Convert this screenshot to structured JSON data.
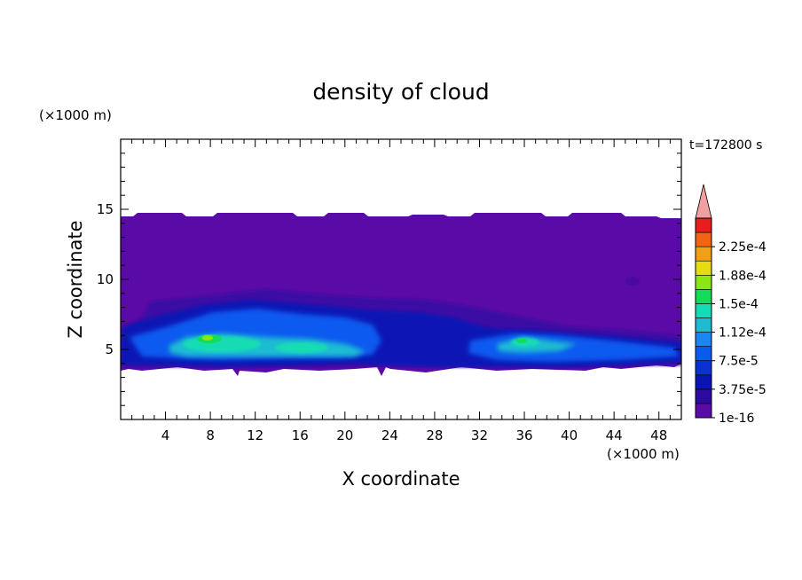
{
  "chart_data": {
    "type": "heatmap",
    "title": "density of cloud",
    "time_label": "t=172800 s",
    "xlabel": "X coordinate",
    "ylabel": "Z coordinate",
    "x_unit": "(×1000 m)",
    "y_unit": "(×1000 m)",
    "xlim": [
      0,
      50
    ],
    "ylim": [
      0,
      20
    ],
    "x_ticks": [
      "4",
      "8",
      "12",
      "16",
      "20",
      "24",
      "28",
      "32",
      "36",
      "40",
      "44",
      "48"
    ],
    "y_ticks": [
      "5",
      "10",
      "15"
    ],
    "colorbar": {
      "min": 1e-16,
      "step": 1.875e-05,
      "levels": 13,
      "tick_labels": [
        "1e-16",
        "3.75e-5",
        "7.5e-5",
        "1.12e-4",
        "1.5e-4",
        "1.88e-4",
        "2.25e-4"
      ],
      "colors": [
        "#5a0aa6",
        "#2d0aa0",
        "#0a14b4",
        "#0a32d2",
        "#0a5af0",
        "#1a86f4",
        "#1ebcd2",
        "#14dcb4",
        "#14dc5a",
        "#8ce614",
        "#e6dc14",
        "#f0a014",
        "#f06414",
        "#e61e1e",
        "#f0a0a0"
      ]
    },
    "field_description": {
      "cloud_base_km": 3.8,
      "cloud_top_km": 14.5,
      "peak_density_region_x_km": [
        6,
        10
      ],
      "peak_density_region_z_km": [
        5,
        6
      ]
    }
  }
}
